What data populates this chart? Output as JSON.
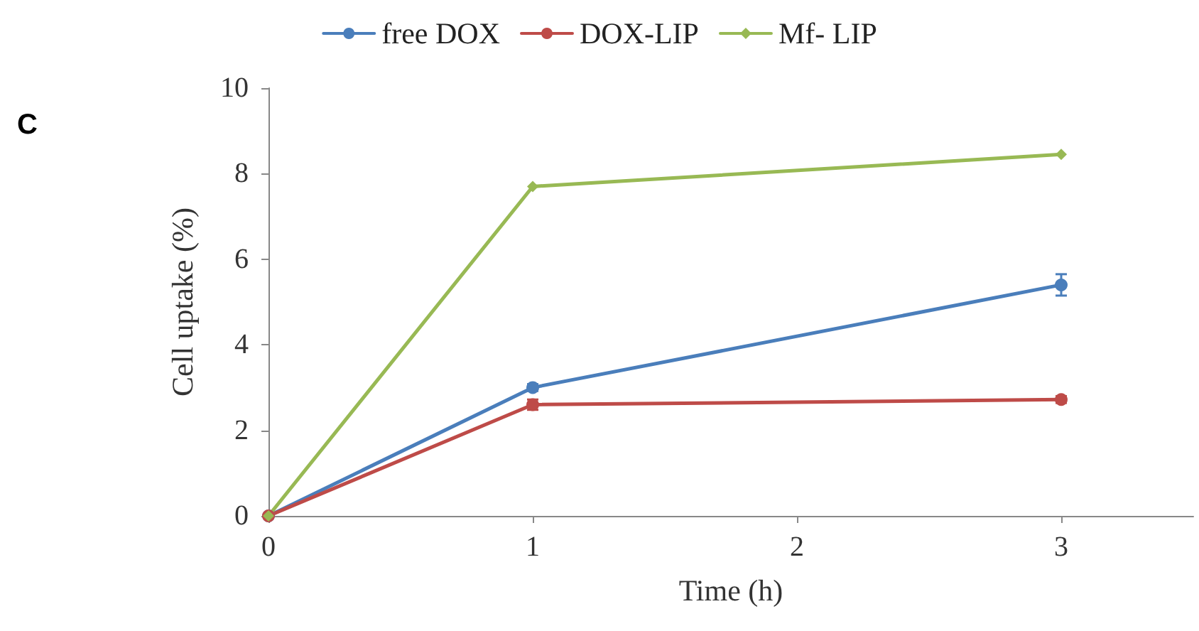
{
  "chart_data": {
    "type": "line",
    "xlabel": "Time (h)",
    "ylabel": "Cell uptake (%)",
    "annotations": [
      "C"
    ],
    "x": [
      0,
      1,
      3
    ],
    "xlim": [
      0,
      3.5
    ],
    "xticks": [
      0,
      1,
      2,
      3
    ],
    "ylim": [
      0,
      10
    ],
    "yticks": [
      0,
      2,
      4,
      6,
      8,
      10
    ],
    "grid": false,
    "legend": "top",
    "series": [
      {
        "name": "free DOX",
        "color": "#4a7ebb",
        "marker": "circle",
        "values": [
          0,
          3.0,
          5.4
        ],
        "errors": [
          null,
          0.08,
          0.25
        ]
      },
      {
        "name": "DOX-LIP",
        "color": "#be4b48",
        "marker": "circle",
        "values": [
          0,
          2.6,
          2.72
        ],
        "errors": [
          null,
          0.12,
          0.08
        ]
      },
      {
        "name": "Mf- LIP",
        "color": "#98b954",
        "marker": "diamond",
        "values": [
          0,
          7.7,
          8.45
        ]
      }
    ]
  }
}
